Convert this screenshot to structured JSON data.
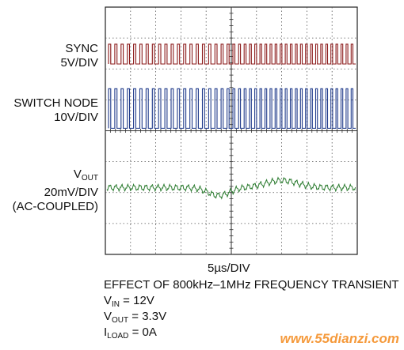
{
  "chart_data": {
    "type": "line",
    "title": "",
    "xlabel": "5µs/DIV",
    "grid": true,
    "divisions": {
      "x": 10,
      "y": 8
    },
    "traces": [
      {
        "label_lines": [
          "SYNC",
          "5V/DIV"
        ],
        "kind": "square",
        "color": "#8b1a1a"
      },
      {
        "label_lines": [
          "SWITCH NODE",
          "10V/DIV"
        ],
        "kind": "square",
        "color": "#1f3a8a"
      },
      {
        "label_main": "V",
        "label_sub": "OUT",
        "label_lines": [
          "20mV/DIV",
          "(AC-COUPLED)"
        ],
        "kind": "ripple",
        "color": "#2e7d32"
      }
    ]
  },
  "caption": {
    "line1": "EFFECT OF 800kHz–1MHz FREQUENCY TRANSIENT",
    "vin_main": "V",
    "vin_sub": "IN",
    "vin_val": " = 12V",
    "vout_main": "V",
    "vout_sub": "OUT",
    "vout_val": " = 3.3V",
    "iload_main": "I",
    "iload_sub": "LOAD",
    "iload_val": " = 0A"
  },
  "watermark": "www.55dianzi.com"
}
